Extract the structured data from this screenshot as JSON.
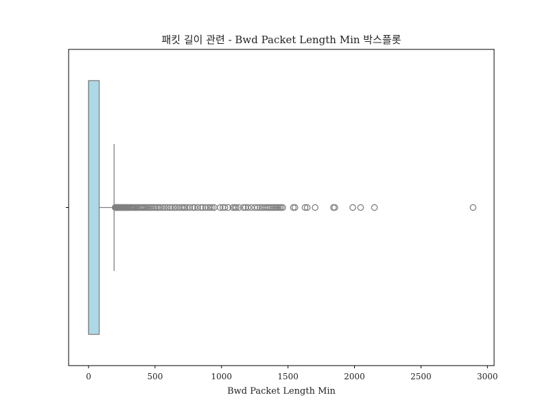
{
  "chart_data": {
    "type": "box",
    "orientation": "horizontal",
    "title": "패킷 길이 관련 - Bwd Packet Length Min 박스플롯",
    "xlabel": "Bwd Packet Length Min",
    "ylabel": "",
    "xlim": [
      -150,
      3050
    ],
    "xticks": [
      0,
      500,
      1000,
      1500,
      2000,
      2500,
      3000
    ],
    "xtick_labels": [
      "0",
      "500",
      "1000",
      "1500",
      "2000",
      "2500",
      "3000"
    ],
    "grid": false,
    "box": {
      "whisker_low": 0,
      "q1": 0,
      "median": 0,
      "q3": 80,
      "whisker_high": 192,
      "fill": "#add8e6",
      "edge": "#808080"
    },
    "outliers": [
      200,
      205,
      210,
      215,
      220,
      225,
      230,
      235,
      240,
      246,
      252,
      258,
      264,
      270,
      277,
      284,
      291,
      298,
      306,
      314,
      322,
      330,
      339,
      348,
      357,
      366,
      376,
      386,
      396,
      406,
      417,
      428,
      440,
      452,
      464,
      476,
      489,
      502,
      515,
      528,
      540,
      560,
      578,
      592,
      610,
      630,
      648,
      660,
      680,
      700,
      712,
      725,
      740,
      760,
      785,
      798,
      820,
      845,
      858,
      880,
      900,
      915,
      930,
      945,
      990,
      1010,
      1025,
      1050,
      1085,
      1100,
      1110,
      1130,
      1165,
      1180,
      1200,
      1225,
      1250,
      1270,
      1290,
      1305,
      1320,
      1335,
      1350,
      1362,
      1375,
      1388,
      1400,
      1412,
      1424,
      1436,
      1448,
      1460,
      1540,
      1552,
      1628,
      1644,
      1704,
      1842,
      1852,
      1987,
      2046,
      2150,
      2892
    ]
  }
}
